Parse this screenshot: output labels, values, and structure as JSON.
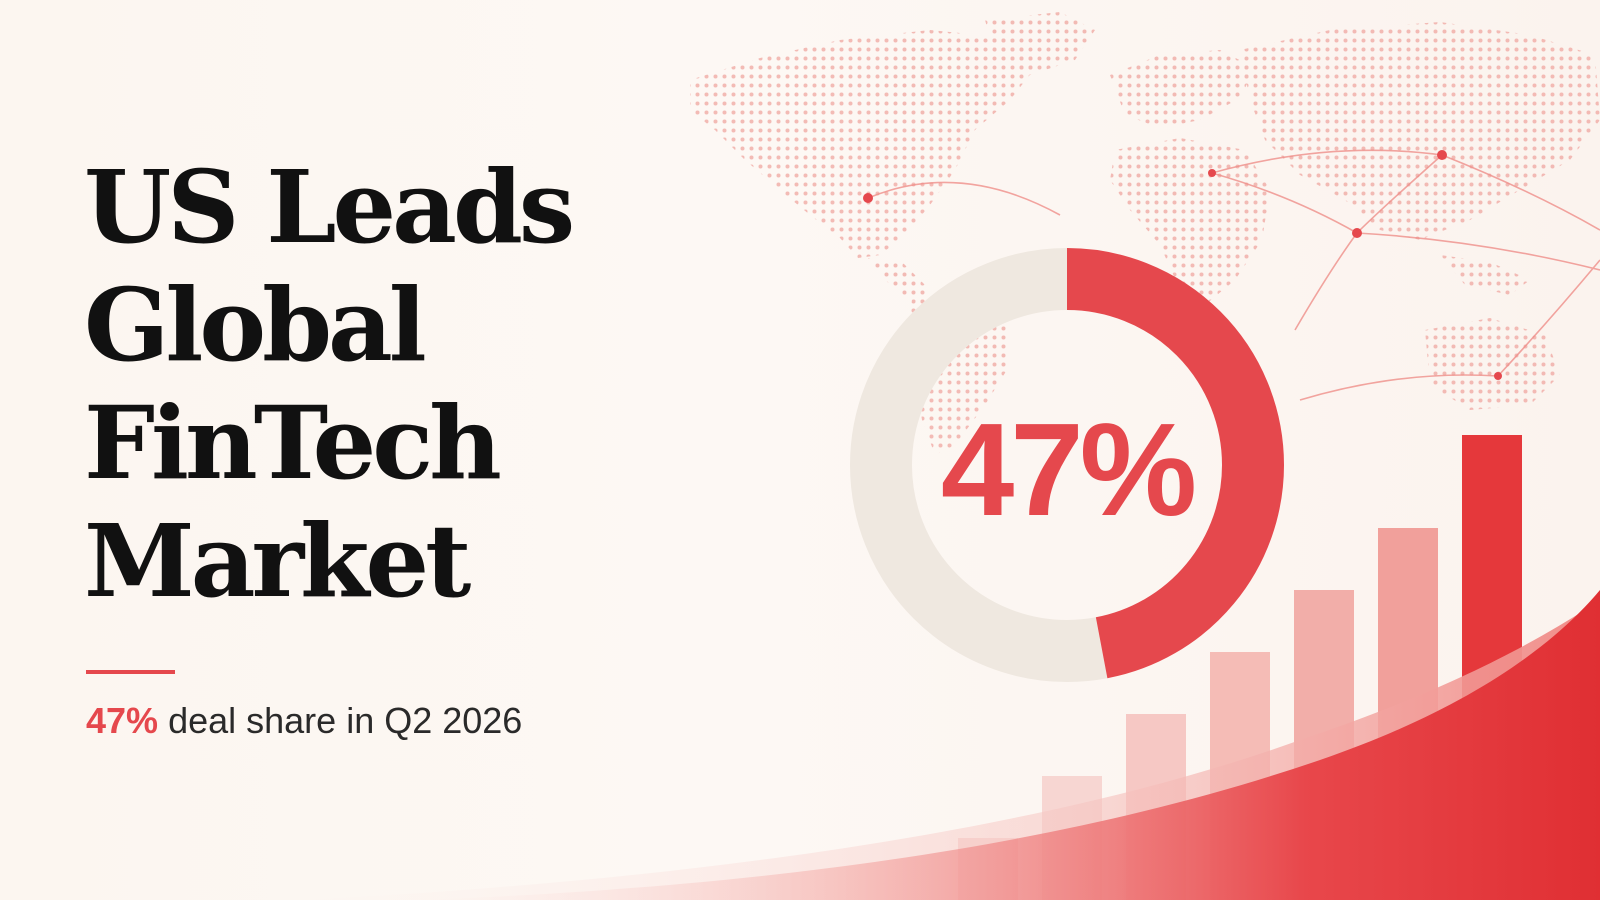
{
  "headline": {
    "lines": [
      "US Leads",
      "Global",
      "FinTech",
      "Market"
    ]
  },
  "subline": {
    "highlight": "47%",
    "text": "deal share in Q2 2026"
  },
  "chart_data": [
    {
      "type": "pie",
      "subtype": "donut",
      "values": [
        47,
        53
      ],
      "center_label": "47%",
      "colors": [
        "#e5484d",
        "#efe8e0"
      ]
    },
    {
      "type": "bar",
      "categories": [
        "",
        "",
        "",
        "",
        "",
        "",
        ""
      ],
      "values": [
        1,
        2,
        3,
        4,
        5,
        6,
        7.5
      ],
      "axes": "hidden",
      "colors": [
        "#f6d0cd",
        "#f6d0cd",
        "#f5c0bc",
        "#f3b1ac",
        "#f0a19c",
        "#ee918c",
        "#e5383b"
      ]
    }
  ],
  "colors": {
    "accent": "#e5484d",
    "background": "#fcf7f2",
    "text": "#111111",
    "map_dots": "#f1b0aa"
  }
}
